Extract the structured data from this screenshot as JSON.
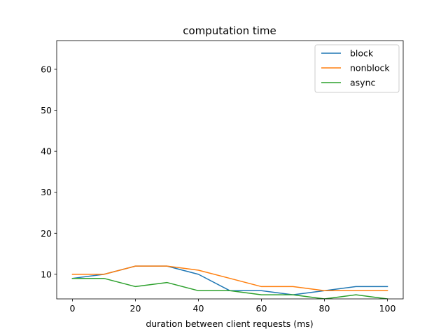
{
  "chart_data": {
    "type": "line",
    "title": "computation time",
    "xlabel": "duration between client requests (ms)",
    "ylabel": "",
    "xlim": [
      -5,
      105
    ],
    "ylim": [
      4,
      67
    ],
    "xticks": [
      0,
      20,
      40,
      60,
      80,
      100
    ],
    "yticks": [
      10,
      20,
      30,
      40,
      50,
      60
    ],
    "grid": false,
    "legend_position": "upper right",
    "x": [
      0,
      10,
      20,
      30,
      40,
      50,
      60,
      70,
      80,
      90,
      100
    ],
    "series": [
      {
        "name": "block",
        "color": "#1f77b4",
        "values": [
          9,
          10,
          12,
          12,
          10,
          6,
          6,
          5,
          6,
          7,
          7
        ]
      },
      {
        "name": "nonblock",
        "color": "#ff7f0e",
        "values": [
          10,
          10,
          12,
          12,
          11,
          9,
          7,
          7,
          6,
          6,
          6
        ]
      },
      {
        "name": "async",
        "color": "#2ca02c",
        "values": [
          9,
          9,
          7,
          8,
          6,
          6,
          5,
          5,
          4,
          5,
          4
        ]
      }
    ]
  }
}
